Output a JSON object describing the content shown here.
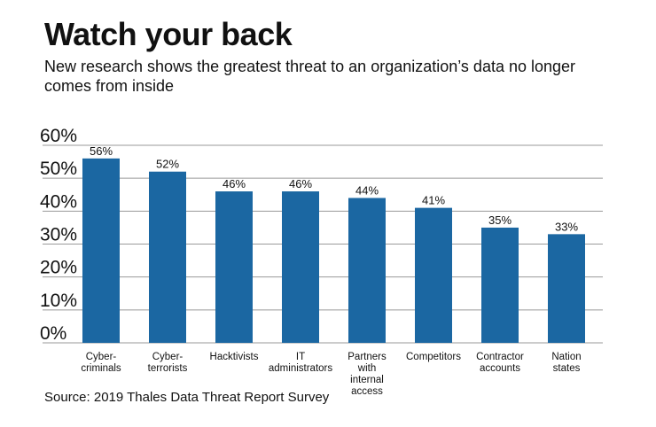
{
  "chart_data": {
    "type": "bar",
    "title": "Watch your back",
    "subtitle": "New research shows the greatest threat to an organization’s data no longer comes from inside",
    "source": "Source: 2019 Thales Data Threat Report Survey",
    "categories": [
      "Cyber-\ncriminals",
      "Cyber-\nterrorists",
      "Hacktivists",
      "IT\nadministrators",
      "Partners\nwith\ninternal\naccess",
      "Competitors",
      "Contractor\naccounts",
      "Nation\nstates"
    ],
    "values": [
      56,
      52,
      46,
      46,
      44,
      41,
      35,
      33
    ],
    "data_labels": [
      "56%",
      "52%",
      "46%",
      "46%",
      "44%",
      "41%",
      "35%",
      "33%"
    ],
    "yticks": [
      0,
      10,
      20,
      30,
      40,
      50,
      60
    ],
    "ytick_labels": [
      "0%",
      "10%",
      "20%",
      "30%",
      "40%",
      "50%",
      "60%"
    ],
    "ylim": [
      0,
      60
    ],
    "grid": true,
    "bar_color": "#1b67a2",
    "grid_color": "#9a9a9a"
  }
}
